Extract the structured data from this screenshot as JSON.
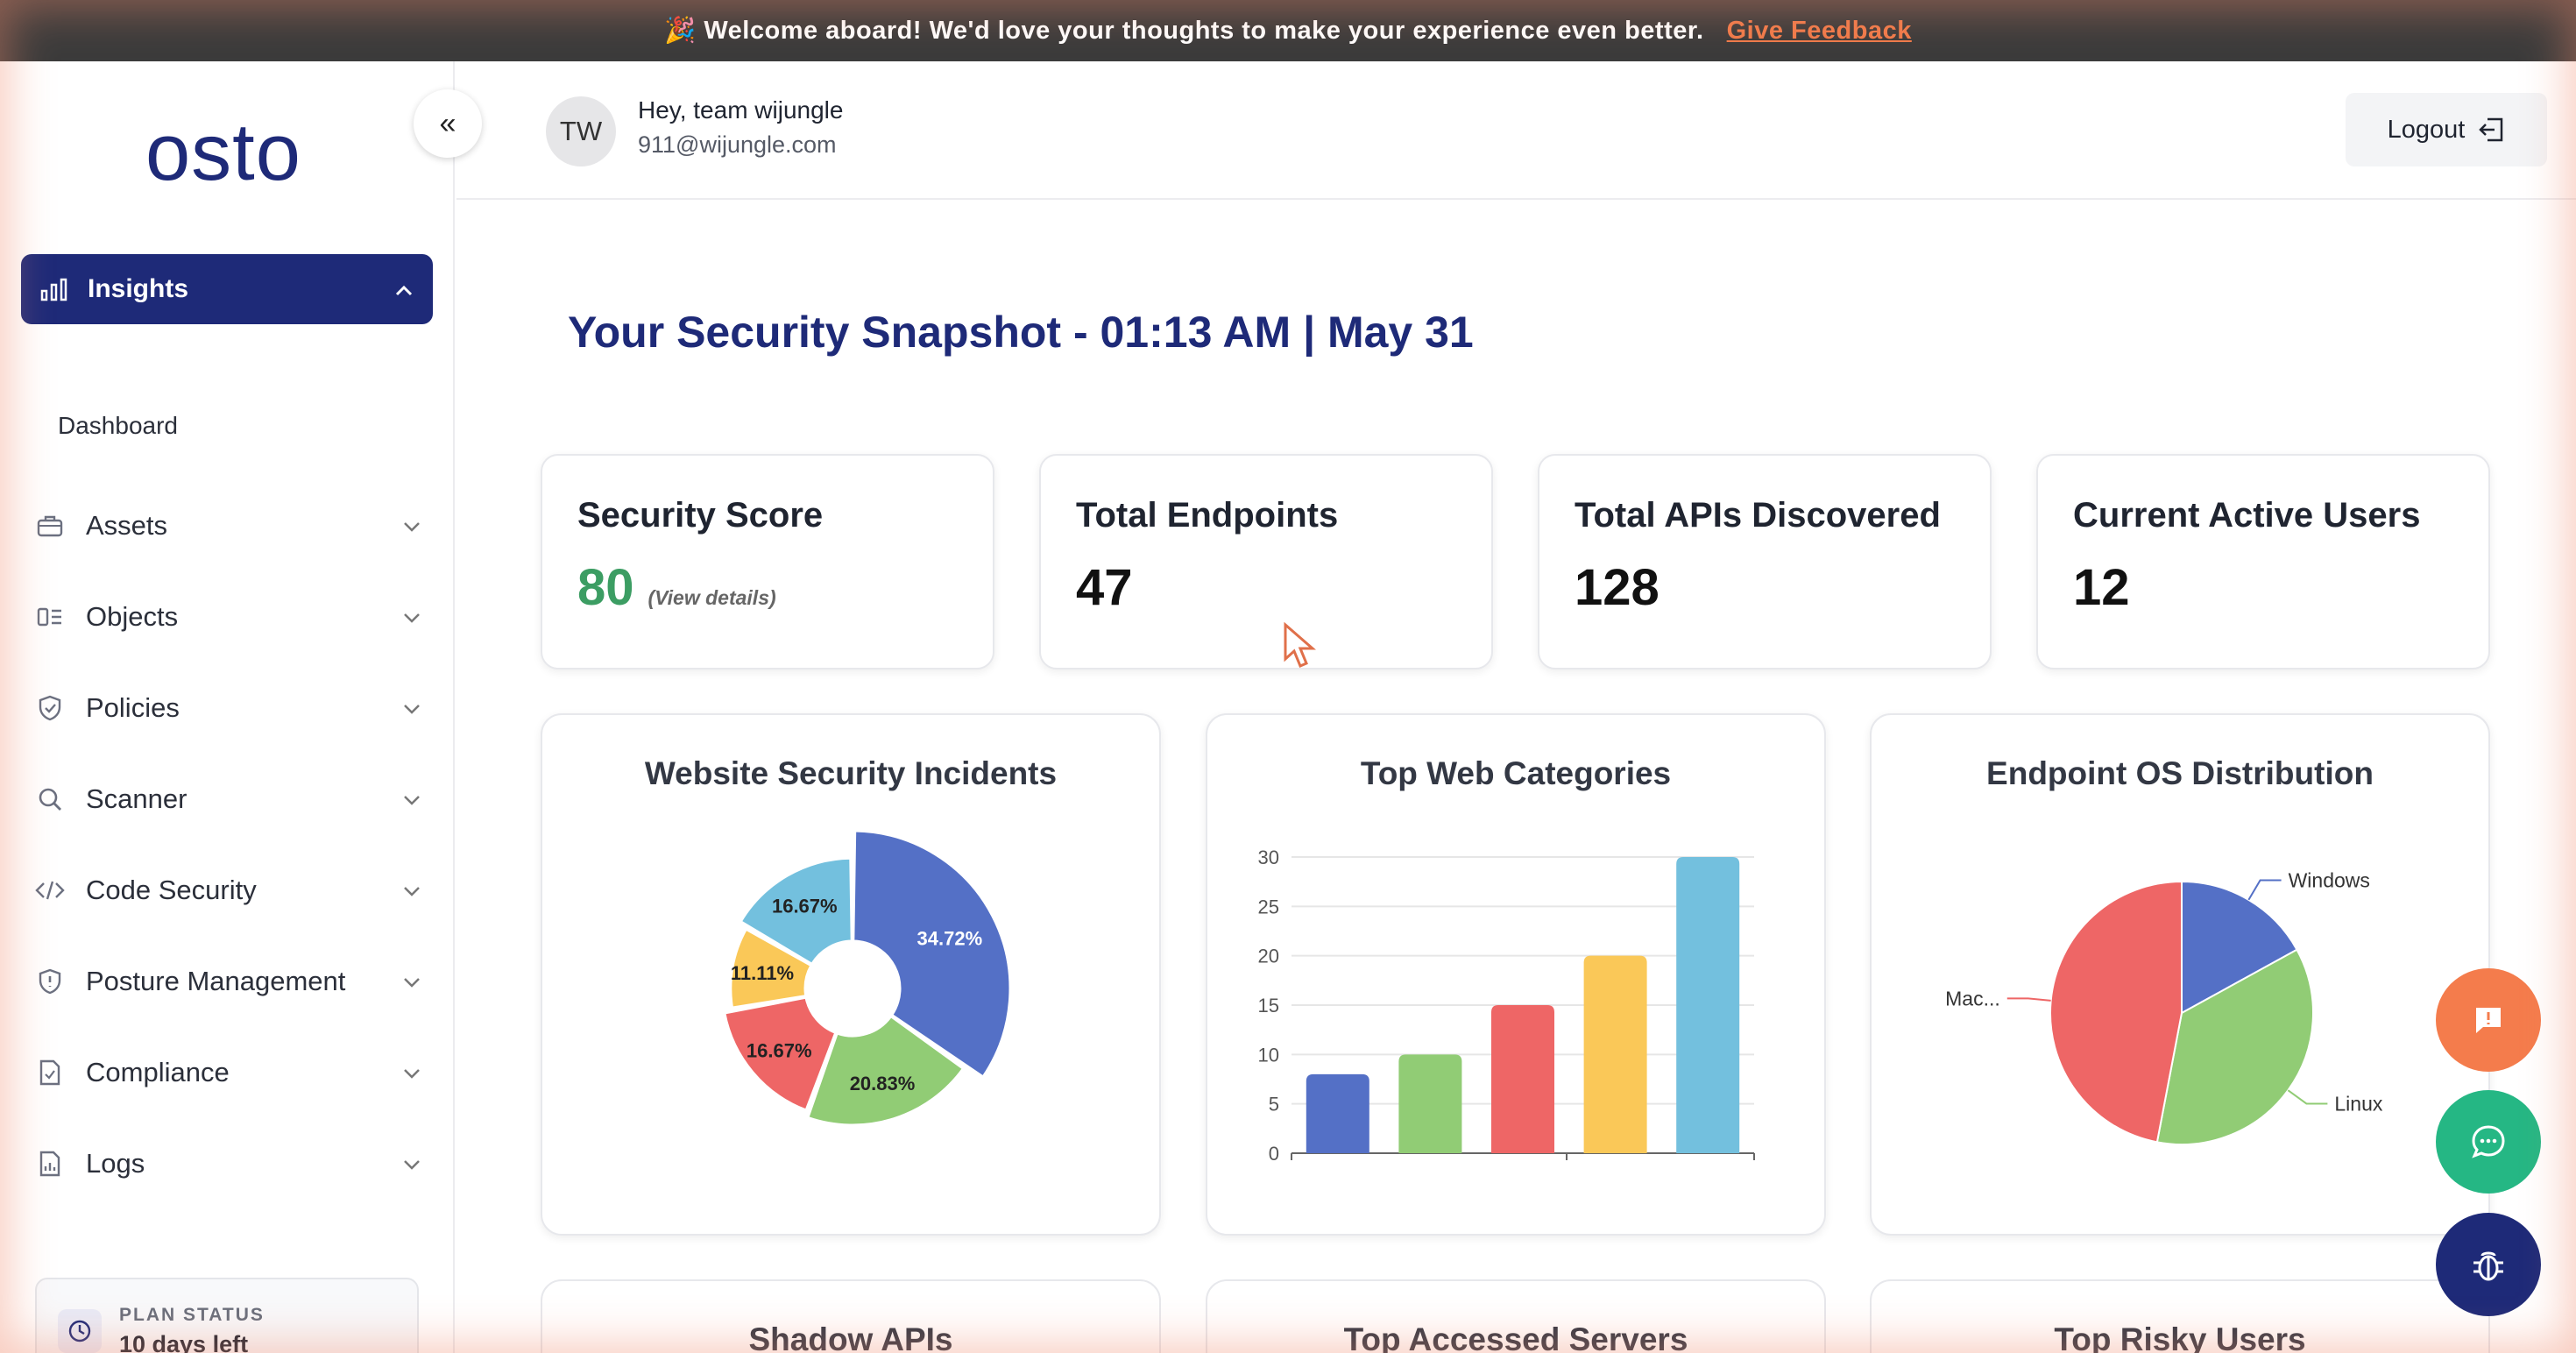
{
  "banner": {
    "text": "🎉 Welcome aboard! We'd love your thoughts to make your experience even better.",
    "link": "Give Feedback"
  },
  "sidebar": {
    "logo": "osto",
    "collapse_icon": "«",
    "active": {
      "label": "Insights"
    },
    "sub_items": [
      {
        "label": "Dashboard"
      }
    ],
    "items": [
      {
        "label": "Assets",
        "icon": "briefcase-icon"
      },
      {
        "label": "Objects",
        "icon": "objects-icon"
      },
      {
        "label": "Policies",
        "icon": "shield-check-icon"
      },
      {
        "label": "Scanner",
        "icon": "search-icon"
      },
      {
        "label": "Code Security",
        "icon": "code-icon"
      },
      {
        "label": "Posture Management",
        "icon": "shield-alert-icon"
      },
      {
        "label": "Compliance",
        "icon": "doc-check-icon"
      },
      {
        "label": "Logs",
        "icon": "file-chart-icon"
      }
    ],
    "plan": {
      "label": "PLAN STATUS",
      "value": "10 days left"
    }
  },
  "header": {
    "avatar": "TW",
    "greeting": "Hey, team wijungle",
    "email": "911@wijungle.com",
    "logout": "Logout"
  },
  "page_title": "Your Security Snapshot - 01:13 AM | May 31",
  "stats": [
    {
      "title": "Security Score",
      "value": "80",
      "detail": "(View details)"
    },
    {
      "title": "Total Endpoints",
      "value": "47"
    },
    {
      "title": "Total APIs Discovered",
      "value": "128"
    },
    {
      "title": "Current Active Users",
      "value": "12"
    }
  ],
  "cards": {
    "incidents": "Website Security Incidents",
    "categories": "Top Web Categories",
    "os": "Endpoint OS Distribution",
    "shadow": "Shadow APIs",
    "servers": "Top Accessed Servers",
    "risky": "Top Risky Users"
  },
  "colors": {
    "blue": "#5470c6",
    "green": "#91cc75",
    "red": "#ee6666",
    "yellow": "#fac858",
    "cyan": "#73c0de",
    "brand": "#1e2a78"
  },
  "chart_data": [
    {
      "type": "pie",
      "title": "Website Security Incidents",
      "style": "rose-donut",
      "values": [
        34.72,
        20.83,
        16.67,
        11.11,
        16.67
      ],
      "labels": [
        "34.72%",
        "20.83%",
        "16.67%",
        "11.11%",
        "16.67%"
      ]
    },
    {
      "type": "bar",
      "title": "Top Web Categories",
      "categories": [
        "",
        "",
        "",
        "",
        ""
      ],
      "values": [
        8,
        10,
        15,
        20,
        30
      ],
      "ylim": [
        0,
        30
      ],
      "yticks": [
        "0",
        "5",
        "10",
        "15",
        "20",
        "25",
        "30"
      ]
    },
    {
      "type": "pie",
      "title": "Endpoint OS Distribution",
      "labels": [
        "Windows",
        "Linux",
        "Mac..."
      ],
      "values": [
        17,
        36,
        47
      ]
    }
  ]
}
